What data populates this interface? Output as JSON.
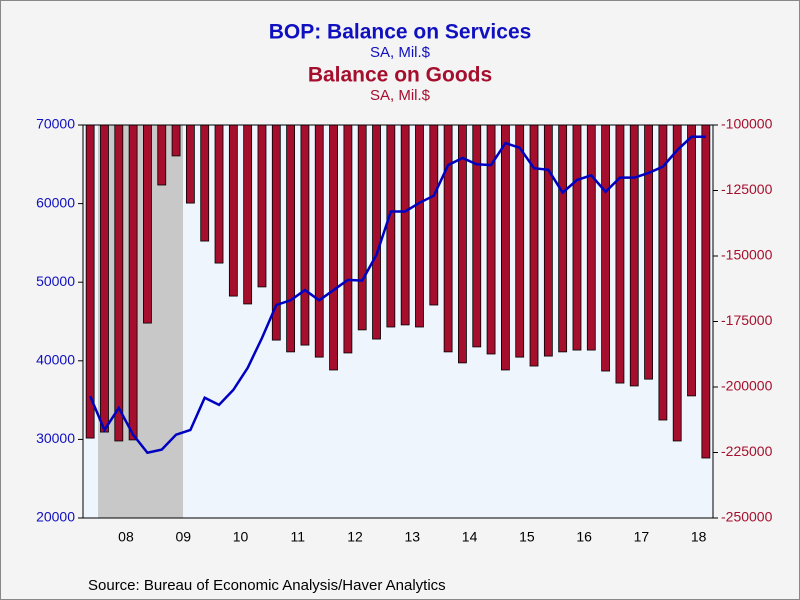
{
  "chart_data": {
    "type": "bar-line",
    "title": "BOP: Balance on Services",
    "subtitle": "SA, Mil.$",
    "title2": "Balance on Goods",
    "subtitle2": "SA, Mil.$",
    "source": "Source:  Bureau of Economic Analysis/Haver Analytics",
    "categories": [
      null,
      null,
      "08",
      null,
      null,
      null,
      "09",
      null,
      null,
      null,
      "10",
      null,
      null,
      null,
      "11",
      null,
      null,
      null,
      "12",
      null,
      null,
      null,
      "13",
      null,
      null,
      null,
      "14",
      null,
      null,
      null,
      "15",
      null,
      null,
      null,
      "16",
      null,
      null,
      null,
      "17",
      null,
      null,
      null,
      "18",
      null
    ],
    "ylim": [
      20000,
      70000
    ],
    "yticks": [
      20000,
      30000,
      40000,
      50000,
      60000,
      70000
    ],
    "y2lim": [
      -250000,
      -100000
    ],
    "y2ticks": [
      -250000,
      -225000,
      -200000,
      -175000,
      -150000,
      -125000,
      -100000
    ],
    "series": [
      {
        "name": "Balance on Goods",
        "type": "bar",
        "axis": "y2",
        "color": "#a50f2d",
        "values": [
          -219500,
          -217200,
          -220600,
          -220200,
          -175600,
          -122900,
          -111800,
          -129800,
          -144300,
          -152700,
          -165300,
          -168300,
          -161800,
          -182100,
          -186600,
          -184000,
          -188600,
          -193500,
          -187000,
          -178200,
          -181700,
          -177100,
          -176300,
          -177100,
          -168700,
          -186600,
          -190800,
          -184700,
          -187400,
          -193500,
          -188600,
          -192000,
          -188200,
          -186600,
          -185900,
          -185900,
          -193900,
          -198500,
          -199600,
          -197000,
          -212600,
          -220600,
          -203400,
          -227100
        ]
      },
      {
        "name": "BOP: Balance on Services",
        "type": "line",
        "color": "#0000c0",
        "values": [
          35500,
          31200,
          34000,
          30600,
          28300,
          28700,
          30600,
          31200,
          35300,
          34400,
          36300,
          39100,
          42900,
          47100,
          47700,
          49000,
          47700,
          49000,
          50300,
          50200,
          53500,
          59000,
          59000,
          60100,
          61000,
          64900,
          65800,
          65000,
          64900,
          67700,
          67100,
          64500,
          64300,
          61400,
          63000,
          63600,
          61500,
          63300,
          63300,
          63900,
          64700,
          66800,
          68500,
          68500
        ]
      }
    ]
  }
}
